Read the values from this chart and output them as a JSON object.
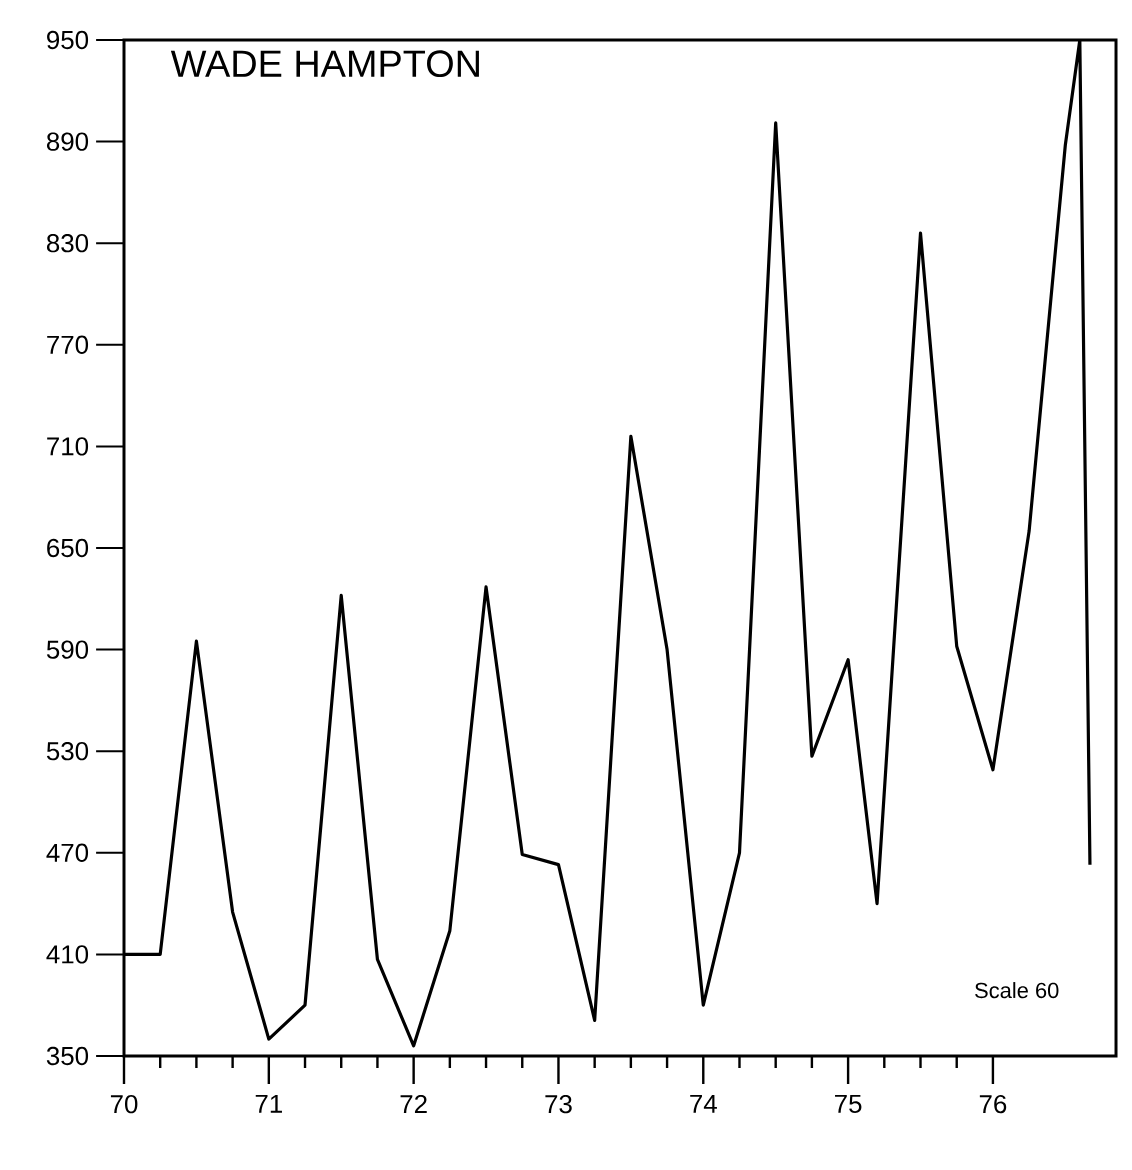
{
  "chart_data": {
    "type": "line",
    "title": "WADE HAMPTON",
    "annotations": [
      "Scale 60"
    ],
    "x": [
      70,
      70.25,
      70.5,
      70.75,
      71,
      71.25,
      71.5,
      71.75,
      72,
      72.25,
      72.5,
      72.75,
      73,
      73.25,
      73.5,
      73.75,
      74,
      74.25,
      74.5,
      74.75,
      75,
      75.2,
      75.5,
      75.75,
      76,
      76.25,
      76.5,
      76.6,
      76.67
    ],
    "values": [
      410,
      410,
      595,
      435,
      360,
      380,
      622,
      407,
      356,
      424,
      627,
      469,
      463,
      371,
      716,
      590,
      380,
      470,
      901,
      527,
      584,
      440,
      836,
      592,
      519,
      660,
      888,
      950,
      463
    ],
    "color": "#000000",
    "xlim": [
      70,
      76.85
    ],
    "ylim": [
      350,
      950
    ],
    "xticks": [
      70,
      71,
      72,
      73,
      74,
      75,
      76
    ],
    "yticks": [
      350,
      410,
      470,
      530,
      590,
      650,
      710,
      770,
      830,
      890,
      950
    ],
    "grid": false,
    "marker": "none",
    "line_style": "solid"
  }
}
